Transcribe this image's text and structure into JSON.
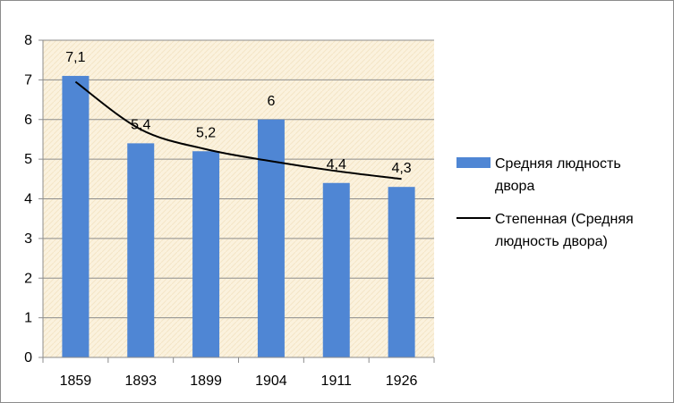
{
  "chart_data": {
    "type": "bar",
    "categories": [
      "1859",
      "1893",
      "1899",
      "1904",
      "1911",
      "1926"
    ],
    "series": [
      {
        "name": "Средняя людность двора",
        "values": [
          7.1,
          5.4,
          5.2,
          6,
          4.4,
          4.3
        ],
        "data_labels": [
          "7,1",
          "5,4",
          "5,2",
          "6",
          "4,4",
          "4,3"
        ],
        "color": "#4f86d4"
      }
    ],
    "trendline": {
      "name": "Степенная (Средняя людность двора)",
      "kind": "power",
      "values": [
        6.95,
        5.75,
        5.25,
        4.95,
        4.7,
        4.5
      ],
      "color": "#000000"
    },
    "ylim": [
      0,
      8
    ],
    "yticks": [
      0,
      1,
      2,
      3,
      4,
      5,
      6,
      7,
      8
    ],
    "title": "",
    "xlabel": "",
    "ylabel": "",
    "grid": true,
    "legend": "right",
    "plot_background": "#fbf2de"
  },
  "legend": {
    "bar_label_line1": "Средняя людность",
    "bar_label_line2": "двора",
    "trend_label_line1": "Степенная (Средняя",
    "trend_label_line2": "людность двора)"
  }
}
